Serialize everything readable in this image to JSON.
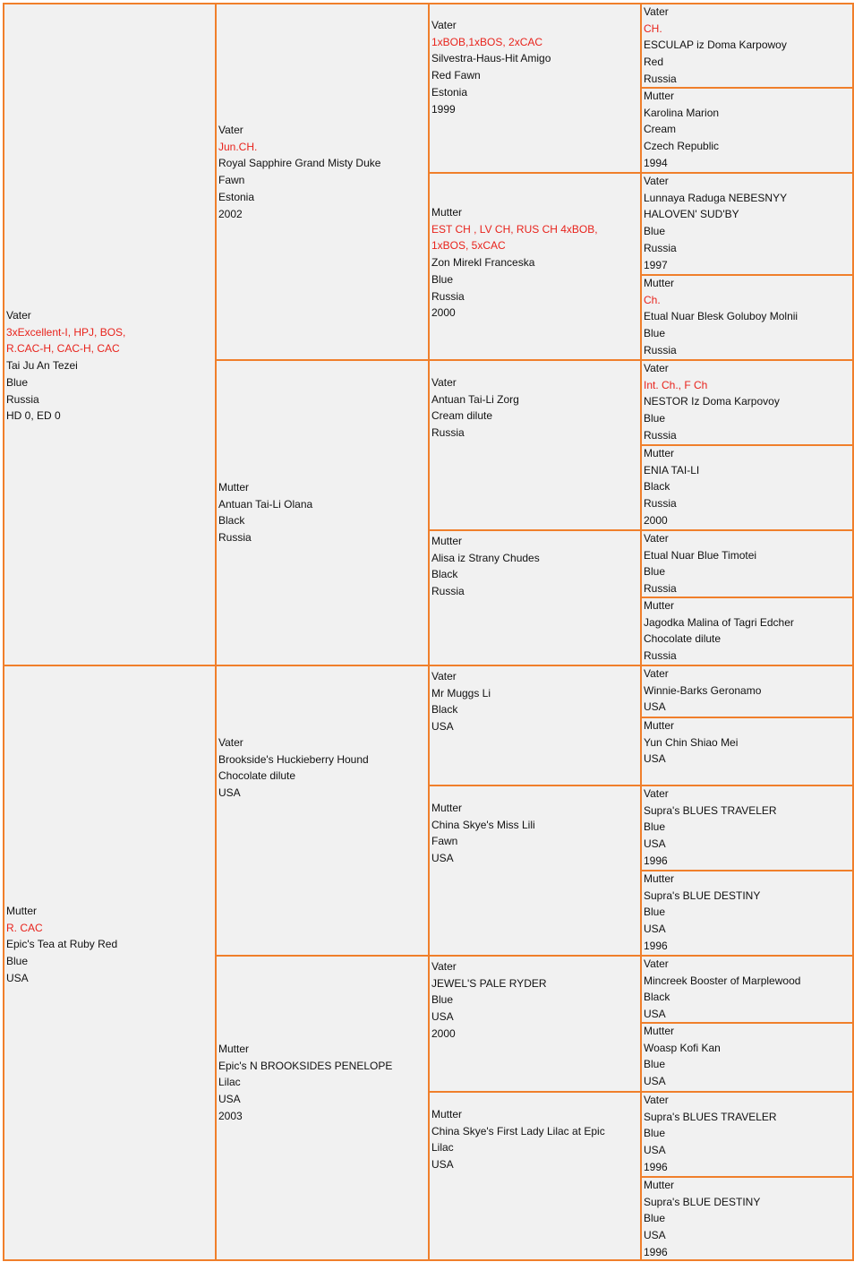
{
  "pedigree": {
    "sire": {
      "lines": [
        {
          "text": "Vater"
        },
        {
          "text": "3xExcellent-I, HPJ, BOS,",
          "red": true
        },
        {
          "text": "R.CAC-H, CAC-H, CAC",
          "red": true
        },
        {
          "text": "Tai Ju An Tezei"
        },
        {
          "text": "Blue"
        },
        {
          "text": "Russia"
        },
        {
          "text": "HD 0, ED 0"
        }
      ]
    },
    "dam": {
      "lines": [
        {
          "text": "Mutter"
        },
        {
          "text": "R. CAC",
          "red": true
        },
        {
          "text": "Epic's Tea at Ruby Red"
        },
        {
          "text": "Blue"
        },
        {
          "text": "USA"
        }
      ]
    },
    "gen2": [
      {
        "lines": [
          {
            "text": "Vater"
          },
          {
            "text": "Jun.CH.",
            "red": true
          },
          {
            "text": "Royal Sapphire Grand Misty Duke"
          },
          {
            "text": "Fawn"
          },
          {
            "text": "Estonia"
          },
          {
            "text": "2002"
          }
        ]
      },
      {
        "lines": [
          {
            "text": "Mutter"
          },
          {
            "text": "Antuan Tai-Li Olana"
          },
          {
            "text": "Black"
          },
          {
            "text": "Russia"
          }
        ]
      },
      {
        "lines": [
          {
            "text": "Vater"
          },
          {
            "text": "Brookside's Huckieberry Hound"
          },
          {
            "text": "Chocolate dilute"
          },
          {
            "text": "USA"
          }
        ]
      },
      {
        "lines": [
          {
            "text": "Mutter"
          },
          {
            "text": "Epic's N BROOKSIDES PENELOPE"
          },
          {
            "text": "Lilac"
          },
          {
            "text": "USA"
          },
          {
            "text": "2003"
          }
        ]
      }
    ],
    "gen3": [
      {
        "lines": [
          {
            "text": "Vater"
          },
          {
            "text": "1xBOB,1xBOS, 2xCAC",
            "red": true
          },
          {
            "text": "Silvestra-Haus-Hit Amigo"
          },
          {
            "text": "Red Fawn"
          },
          {
            "text": "Estonia"
          },
          {
            "text": "1999"
          }
        ]
      },
      {
        "lines": [
          {
            "text": "Mutter"
          },
          {
            "text": "EST CH , LV CH, RUS CH 4xBOB,",
            "red": true
          },
          {
            "text": "1xBOS, 5xCAC",
            "red": true
          },
          {
            "text": "Zon Mirekl Franceska"
          },
          {
            "text": "Blue"
          },
          {
            "text": "Russia"
          },
          {
            "text": "2000"
          }
        ]
      },
      {
        "lines": [
          {
            "text": "Vater"
          },
          {
            "text": "Antuan Tai-Li Zorg"
          },
          {
            "text": "Cream dilute"
          },
          {
            "text": "Russia"
          }
        ]
      },
      {
        "lines": [
          {
            "text": "Mutter"
          },
          {
            "text": "Alisa iz Strany Chudes"
          },
          {
            "text": "Black"
          },
          {
            "text": "Russia"
          }
        ]
      },
      {
        "lines": [
          {
            "text": "Vater"
          },
          {
            "text": "Mr Muggs Li"
          },
          {
            "text": "Black"
          },
          {
            "text": "USA"
          }
        ]
      },
      {
        "lines": [
          {
            "text": "Mutter"
          },
          {
            "text": "China Skye's Miss Lili"
          },
          {
            "text": "Fawn"
          },
          {
            "text": "USA"
          }
        ]
      },
      {
        "lines": [
          {
            "text": "Vater"
          },
          {
            "text": "JEWEL'S PALE RYDER"
          },
          {
            "text": "Blue"
          },
          {
            "text": "USA"
          },
          {
            "text": "2000"
          }
        ]
      },
      {
        "lines": [
          {
            "text": "Mutter"
          },
          {
            "text": "China Skye's First Lady Lilac at Epic"
          },
          {
            "text": "Lilac"
          },
          {
            "text": "USA"
          }
        ]
      }
    ],
    "gen4": [
      {
        "lines": [
          {
            "text": "Vater"
          },
          {
            "text": "CH.",
            "red": true
          },
          {
            "text": "ESCULAP iz Doma Karpowoy"
          },
          {
            "text": "Red"
          },
          {
            "text": "Russia"
          }
        ]
      },
      {
        "lines": [
          {
            "text": "Mutter"
          },
          {
            "text": "Karolina Marion"
          },
          {
            "text": "Cream"
          },
          {
            "text": "Czech Republic"
          },
          {
            "text": "1994"
          }
        ]
      },
      {
        "lines": [
          {
            "text": "Vater"
          },
          {
            "text": "Lunnaya Raduga NEBESNYY"
          },
          {
            "text": " HALOVEN' SUD'BY"
          },
          {
            "text": "Blue"
          },
          {
            "text": "Russia"
          },
          {
            "text": "1997"
          }
        ]
      },
      {
        "lines": [
          {
            "text": "Mutter"
          },
          {
            "text": "Ch.",
            "red": true
          },
          {
            "text": "Etual Nuar Blesk Goluboy Molnii"
          },
          {
            "text": "Blue"
          },
          {
            "text": "Russia"
          }
        ]
      },
      {
        "lines": [
          {
            "text": "Vater"
          },
          {
            "text": "Int. Ch., F Ch",
            "red": true
          },
          {
            "text": "NESTOR Iz Doma Karpovoy"
          },
          {
            "text": "Blue"
          },
          {
            "text": "Russia"
          }
        ]
      },
      {
        "lines": [
          {
            "text": "Mutter"
          },
          {
            "text": "ENIA TAI-LI"
          },
          {
            "text": "Black"
          },
          {
            "text": "Russia"
          },
          {
            "text": "2000"
          }
        ]
      },
      {
        "lines": [
          {
            "text": "Vater"
          },
          {
            "text": "Etual Nuar Blue Timotei"
          },
          {
            "text": "Blue"
          },
          {
            "text": "Russia"
          }
        ]
      },
      {
        "lines": [
          {
            "text": "Mutter"
          },
          {
            "text": "Jagodka Malina of Tagri Edcher"
          },
          {
            "text": "Chocolate dilute"
          },
          {
            "text": "Russia"
          }
        ]
      },
      {
        "lines": [
          {
            "text": "Vater"
          },
          {
            "text": "Winnie-Barks Geronamo"
          },
          {
            "text": "USA"
          }
        ]
      },
      {
        "lines": [
          {
            "text": "Mutter"
          },
          {
            "text": "Yun Chin Shiao Mei"
          },
          {
            "text": "USA"
          }
        ]
      },
      {
        "lines": [
          {
            "text": "Vater"
          },
          {
            "text": "Supra's BLUES TRAVELER"
          },
          {
            "text": "Blue"
          },
          {
            "text": "USA"
          },
          {
            "text": "1996"
          }
        ]
      },
      {
        "lines": [
          {
            "text": "Mutter"
          },
          {
            "text": "Supra's BLUE DESTINY"
          },
          {
            "text": "Blue"
          },
          {
            "text": "USA"
          },
          {
            "text": "1996"
          }
        ]
      },
      {
        "lines": [
          {
            "text": "Vater"
          },
          {
            "text": "Mincreek Booster of Marplewood"
          },
          {
            "text": "Black"
          },
          {
            "text": "USA"
          }
        ]
      },
      {
        "lines": [
          {
            "text": "Mutter"
          },
          {
            "text": "Woasp Kofi Kan"
          },
          {
            "text": "Blue"
          },
          {
            "text": "USA"
          }
        ]
      },
      {
        "lines": [
          {
            "text": "Vater"
          },
          {
            "text": "Supra's BLUES TRAVELER"
          },
          {
            "text": "Blue"
          },
          {
            "text": "USA"
          },
          {
            "text": "1996"
          }
        ]
      },
      {
        "lines": [
          {
            "text": "Mutter"
          },
          {
            "text": "Supra's BLUE DESTINY"
          },
          {
            "text": "Blue"
          },
          {
            "text": "USA"
          },
          {
            "text": "1996"
          }
        ]
      }
    ]
  },
  "colors": {
    "border": "#f07f2b",
    "cell_bg": "#f1f1f1",
    "title_red": "#e8231c",
    "text": "#111111"
  }
}
